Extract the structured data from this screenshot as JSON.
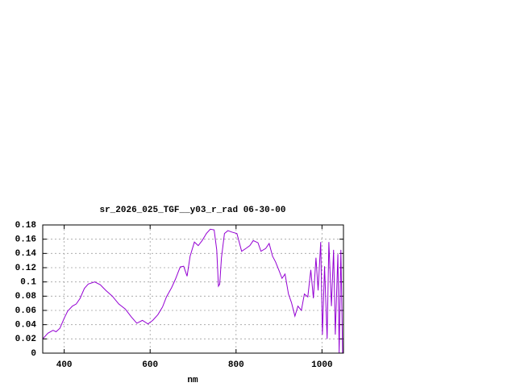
{
  "chart_data": {
    "type": "line",
    "title": "sr_2026_025_TGF__y03_r_rad 06-30-00",
    "x_label": "nm",
    "x": [
      350,
      362,
      374,
      381,
      390,
      400,
      408,
      419,
      428,
      437,
      447,
      456,
      471,
      484,
      497,
      512,
      527,
      542,
      556,
      569,
      582,
      595,
      606,
      618,
      629,
      638,
      650,
      659,
      670,
      678,
      686,
      693,
      703,
      712,
      721,
      731,
      740,
      749,
      755,
      759,
      762,
      766,
      773,
      781,
      790,
      802,
      813,
      823,
      832,
      840,
      851,
      858,
      869,
      877,
      885,
      892,
      900,
      907,
      914,
      922,
      929,
      937,
      944,
      952,
      959,
      967,
      974,
      980,
      986,
      991,
      997,
      1001,
      1006,
      1012,
      1016,
      1022,
      1027,
      1031,
      1037,
      1040,
      1044,
      1048
    ],
    "series": [
      {
        "name": null,
        "color": "#9400d3",
        "values": [
          0.02,
          0.028,
          0.032,
          0.03,
          0.035,
          0.049,
          0.059,
          0.066,
          0.069,
          0.077,
          0.091,
          0.097,
          0.1,
          0.096,
          0.088,
          0.08,
          0.069,
          0.062,
          0.051,
          0.042,
          0.046,
          0.041,
          0.046,
          0.054,
          0.065,
          0.079,
          0.092,
          0.104,
          0.121,
          0.122,
          0.108,
          0.136,
          0.156,
          0.151,
          0.158,
          0.168,
          0.174,
          0.173,
          0.145,
          0.094,
          0.097,
          0.134,
          0.168,
          0.172,
          0.17,
          0.168,
          0.143,
          0.147,
          0.151,
          0.158,
          0.155,
          0.143,
          0.147,
          0.154,
          0.136,
          0.128,
          0.116,
          0.105,
          0.111,
          0.083,
          0.071,
          0.052,
          0.066,
          0.06,
          0.083,
          0.079,
          0.117,
          0.077,
          0.134,
          0.088,
          0.156,
          0.026,
          0.122,
          0.02,
          0.156,
          0.066,
          0.145,
          0.026,
          0.139,
          0,
          0.145,
          0
        ]
      }
    ],
    "xlim": [
      350,
      1050
    ],
    "xticks": [
      400,
      600,
      800,
      1000
    ],
    "ylim": [
      0,
      0.18
    ],
    "yticks": [
      0,
      0.02,
      0.04,
      0.06,
      0.08,
      0.1,
      0.12,
      0.14,
      0.16,
      0.18
    ],
    "grid": true
  }
}
